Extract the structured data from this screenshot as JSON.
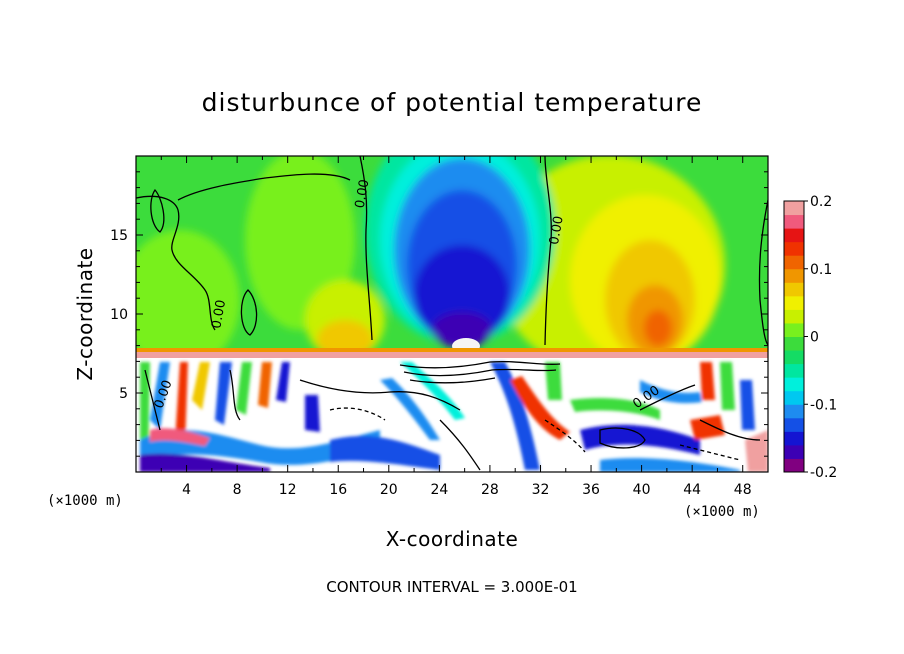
{
  "chart_data": {
    "type": "heatmap",
    "title": "disturbunce of potential temperature",
    "xlabel": "X-coordinate",
    "ylabel": "Z-coordinate",
    "x_unit": "(×1000 m)",
    "y_unit": "(×1000 m)",
    "xlim": [
      0,
      50
    ],
    "ylim": [
      0,
      20
    ],
    "x_ticks": [
      "4",
      "8",
      "12",
      "16",
      "20",
      "24",
      "28",
      "32",
      "36",
      "40",
      "44",
      "48"
    ],
    "y_ticks": [
      "5",
      "10",
      "15"
    ],
    "colorbar": {
      "min": -0.2,
      "max": 0.2,
      "tick_labels": [
        "0.2",
        "0.1",
        "0",
        "-0.1",
        "-0.2"
      ],
      "colors": [
        "#800080",
        "#3c00b4",
        "#1414d2",
        "#1450e6",
        "#1e8cf0",
        "#00c8f0",
        "#00f0dc",
        "#00e6a0",
        "#14dc64",
        "#3cdc3c",
        "#78f01e",
        "#c8f000",
        "#f0f000",
        "#f0c800",
        "#f09600",
        "#f06400",
        "#f03200",
        "#e61414",
        "#f05a7d",
        "#f0a0a0"
      ]
    },
    "contour_labels": [
      "0.00",
      "0.00",
      "0.00",
      "0.00",
      "0.00"
    ],
    "footer": "CONTOUR INTERVAL = 3.000E-01"
  }
}
